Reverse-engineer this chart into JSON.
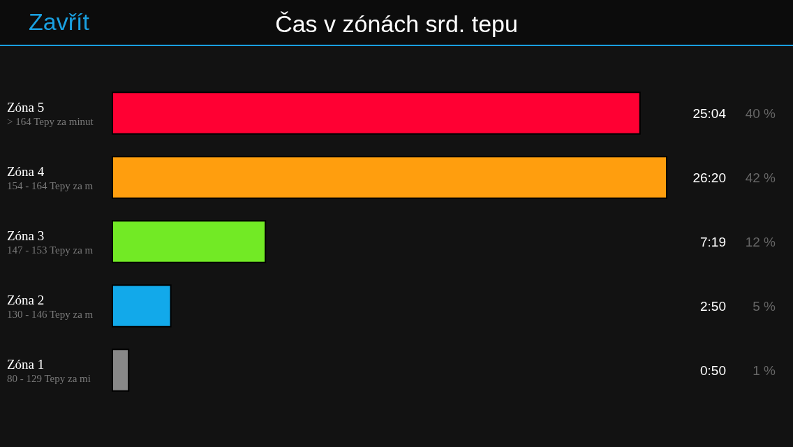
{
  "chart_data": {
    "type": "bar",
    "orientation": "horizontal",
    "title": "Čas v zónách srd. tepu",
    "categories": [
      "Zóna 5\n> 164 Tepy za minut",
      "Zóna 4\n154 - 164 Tepy za m",
      "Zóna 3\n147 - 153 Tepy za m",
      "Zóna 2\n130 - 146 Tepy za m",
      "Zóna 1\n80 - 129 Tepy za mi"
    ],
    "values": [
      25.067,
      26.333,
      7.317,
      2.833,
      0.833
    ],
    "colors": [
      "#ff0033",
      "#ff9e0e",
      "#72ea25",
      "#12a9ea",
      "#888888"
    ],
    "value_labels": [
      "25:04",
      "26:20",
      "7:19",
      "2:50",
      "0:50"
    ],
    "annotations": [
      "Zavřít",
      "40 %",
      "42 %",
      "12 %",
      "5 %",
      "1 %"
    ]
  }
}
